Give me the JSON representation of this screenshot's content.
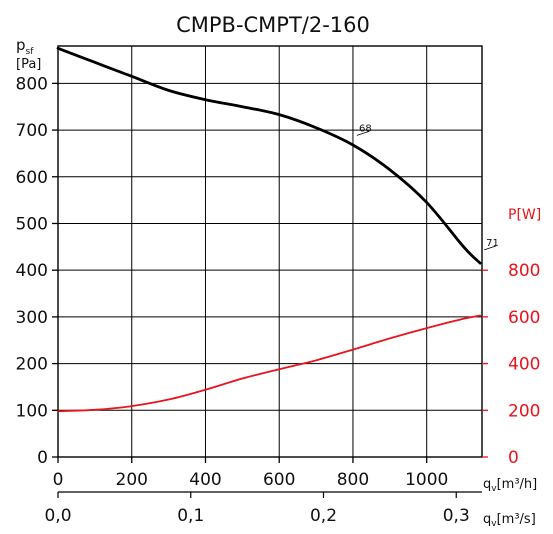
{
  "chart_data": {
    "type": "line",
    "title": "CMPB-CMPT/2-160",
    "x_axis": {
      "label_main": "q",
      "label_sub": "v",
      "label_unit": "[m³/h]",
      "range": [
        0,
        1150
      ],
      "ticks": [
        0,
        200,
        400,
        600,
        800,
        1000
      ],
      "tick_labels": [
        "0",
        "200",
        "400",
        "600",
        "800",
        "1000"
      ]
    },
    "x2_axis": {
      "label_main": "q",
      "label_sub": "v",
      "label_unit": "[m³/s]",
      "range": [
        0,
        0.3194
      ],
      "ticks": [
        0.0,
        0.1,
        0.2,
        0.3
      ],
      "tick_labels": [
        "0,0",
        "0,1",
        "0,2",
        "0,3"
      ]
    },
    "y_left": {
      "label_main": "p",
      "label_sub": "sf",
      "label_unit": "[Pa]",
      "range": [
        0,
        880
      ],
      "ticks": [
        0,
        100,
        200,
        300,
        400,
        500,
        600,
        700,
        800
      ],
      "tick_labels": [
        "0",
        "100",
        "200",
        "300",
        "400",
        "500",
        "600",
        "700",
        "800"
      ]
    },
    "y_right": {
      "label": "P[W]",
      "range": [
        0,
        1760
      ],
      "ticks": [
        0,
        200,
        400,
        600,
        800
      ],
      "tick_labels": [
        "0",
        "200",
        "400",
        "600",
        "800"
      ]
    },
    "grid": true,
    "series": [
      {
        "axis": "left",
        "color": "#000000",
        "points": [
          [
            0,
            875
          ],
          [
            100,
            845
          ],
          [
            200,
            815
          ],
          [
            300,
            785
          ],
          [
            400,
            765
          ],
          [
            500,
            750
          ],
          [
            600,
            733
          ],
          [
            700,
            705
          ],
          [
            800,
            668
          ],
          [
            900,
            615
          ],
          [
            1000,
            545
          ],
          [
            1100,
            450
          ],
          [
            1145,
            415
          ]
        ]
      },
      {
        "axis": "right",
        "color": "#e8141c",
        "points": [
          [
            0,
            196
          ],
          [
            100,
            202
          ],
          [
            200,
            218
          ],
          [
            300,
            246
          ],
          [
            400,
            288
          ],
          [
            500,
            336
          ],
          [
            600,
            376
          ],
          [
            700,
            414
          ],
          [
            800,
            460
          ],
          [
            900,
            508
          ],
          [
            1000,
            552
          ],
          [
            1100,
            592
          ],
          [
            1145,
            606
          ]
        ]
      }
    ],
    "annotations": [
      {
        "text": "68",
        "x": 800,
        "y": 680
      },
      {
        "text": "71",
        "x": 1145,
        "y": 435
      }
    ]
  }
}
